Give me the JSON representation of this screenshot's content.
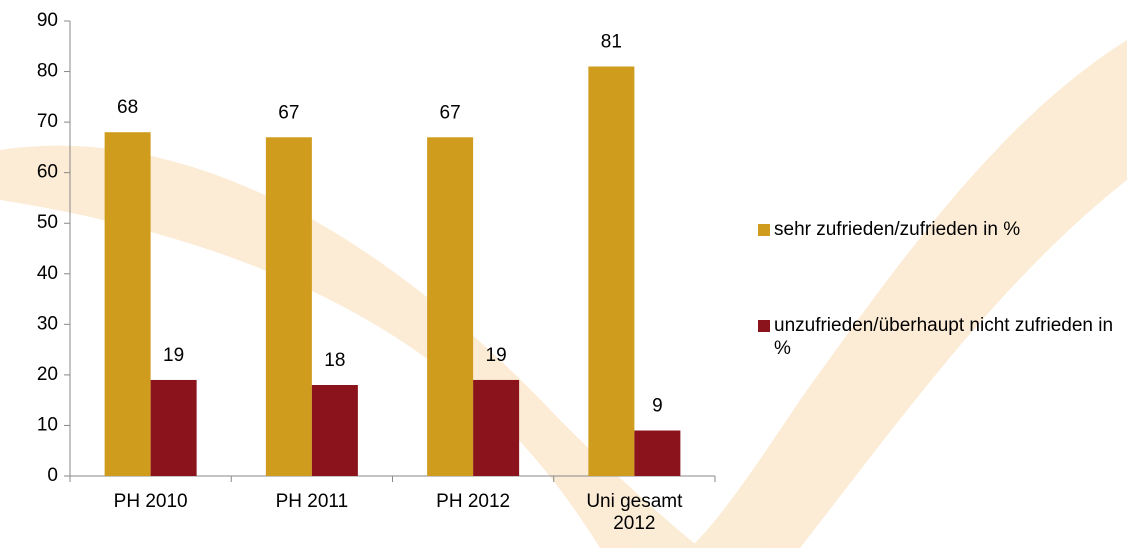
{
  "chart_data": {
    "type": "bar",
    "categories": [
      "PH 2010",
      "PH 2011",
      "PH 2012",
      "Uni gesamt 2012"
    ],
    "series": [
      {
        "name": "sehr zufrieden/zufrieden in %",
        "color": "#d09c1e",
        "values": [
          68,
          67,
          67,
          81
        ]
      },
      {
        "name": "unzufrieden/überhaupt nicht zufrieden in %",
        "color": "#8b141c",
        "values": [
          19,
          18,
          19,
          9
        ]
      }
    ],
    "ylim": [
      0,
      90
    ],
    "yticks": [
      0,
      10,
      20,
      30,
      40,
      50,
      60,
      70,
      80,
      90
    ],
    "legend": "right"
  }
}
